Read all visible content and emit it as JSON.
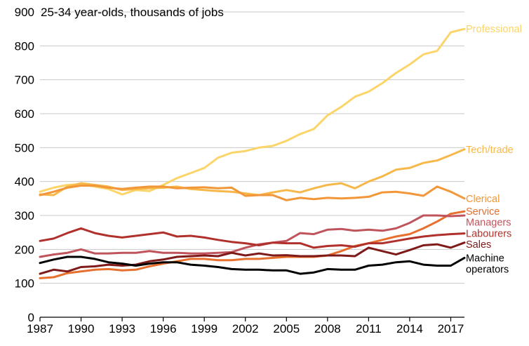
{
  "chart_data": {
    "type": "line",
    "title": "",
    "ylabel": "25-34 year-olds, thousands of jobs",
    "xlabel": "",
    "xlim": [
      1987,
      2018
    ],
    "ylim": [
      0,
      900
    ],
    "x_ticks": [
      1987,
      1990,
      1993,
      1996,
      1999,
      2002,
      2005,
      2008,
      2011,
      2014,
      2017
    ],
    "y_ticks": [
      0,
      100,
      200,
      300,
      400,
      500,
      600,
      700,
      800,
      900
    ],
    "grid": true,
    "x": [
      1987,
      1988,
      1989,
      1990,
      1991,
      1992,
      1993,
      1994,
      1995,
      1996,
      1997,
      1998,
      1999,
      2000,
      2001,
      2002,
      2003,
      2004,
      2005,
      2006,
      2007,
      2008,
      2009,
      2010,
      2011,
      2012,
      2013,
      2014,
      2015,
      2016,
      2017,
      2018
    ],
    "series": [
      {
        "name": "Professional",
        "color": "#fbd56a",
        "label_lines": [
          "Professional"
        ],
        "values": [
          370,
          382,
          390,
          392,
          385,
          378,
          362,
          375,
          372,
          390,
          410,
          425,
          440,
          470,
          485,
          490,
          500,
          505,
          520,
          540,
          555,
          595,
          620,
          650,
          665,
          690,
          720,
          745,
          775,
          785,
          840,
          850
        ]
      },
      {
        "name": "Tech/trade",
        "color": "#f7b84a",
        "label_lines": [
          "Tech/trade"
        ],
        "values": [
          362,
          360,
          385,
          395,
          390,
          385,
          375,
          378,
          380,
          382,
          385,
          378,
          375,
          372,
          370,
          365,
          360,
          368,
          375,
          368,
          380,
          390,
          395,
          380,
          400,
          415,
          435,
          440,
          455,
          462,
          478,
          495
        ]
      },
      {
        "name": "Clerical",
        "color": "#f29739",
        "label_lines": [
          "Clerical"
        ],
        "values": [
          360,
          370,
          382,
          388,
          388,
          382,
          378,
          382,
          385,
          385,
          380,
          382,
          383,
          380,
          382,
          358,
          360,
          360,
          345,
          352,
          348,
          352,
          350,
          352,
          355,
          368,
          370,
          365,
          358,
          385,
          370,
          350
        ]
      },
      {
        "name": "Service",
        "color": "#e8702e",
        "label_lines": [
          "Service"
        ],
        "values": [
          115,
          118,
          130,
          135,
          140,
          142,
          138,
          140,
          150,
          158,
          165,
          172,
          172,
          168,
          168,
          172,
          172,
          175,
          178,
          178,
          178,
          182,
          195,
          210,
          218,
          228,
          238,
          245,
          262,
          282,
          305,
          312
        ]
      },
      {
        "name": "Managers",
        "color": "#c0545d",
        "label_lines": [
          "Managers"
        ],
        "values": [
          178,
          185,
          190,
          200,
          188,
          188,
          190,
          190,
          195,
          190,
          190,
          188,
          188,
          190,
          192,
          205,
          215,
          220,
          225,
          248,
          245,
          258,
          260,
          255,
          258,
          255,
          262,
          278,
          300,
          300,
          298,
          300
        ]
      },
      {
        "name": "Labourers",
        "color": "#b0312c",
        "label_lines": [
          "Labourers"
        ],
        "values": [
          225,
          232,
          248,
          262,
          248,
          240,
          235,
          240,
          245,
          250,
          238,
          240,
          235,
          228,
          222,
          218,
          212,
          220,
          218,
          218,
          205,
          210,
          212,
          208,
          218,
          218,
          225,
          232,
          238,
          242,
          245,
          247
        ]
      },
      {
        "name": "Sales",
        "color": "#7e1a1a",
        "label_lines": [
          "Sales"
        ],
        "values": [
          128,
          140,
          135,
          148,
          150,
          155,
          152,
          155,
          165,
          170,
          178,
          180,
          182,
          180,
          190,
          182,
          188,
          182,
          183,
          180,
          180,
          182,
          182,
          180,
          205,
          195,
          185,
          198,
          212,
          215,
          205,
          220
        ]
      },
      {
        "name": "Machine operators",
        "color": "#000000",
        "label_lines": [
          "Machine",
          "operators"
        ],
        "values": [
          160,
          170,
          178,
          178,
          172,
          162,
          158,
          152,
          158,
          162,
          162,
          155,
          152,
          148,
          142,
          140,
          140,
          138,
          138,
          128,
          132,
          142,
          140,
          140,
          152,
          155,
          162,
          165,
          155,
          152,
          152,
          175
        ]
      }
    ]
  }
}
